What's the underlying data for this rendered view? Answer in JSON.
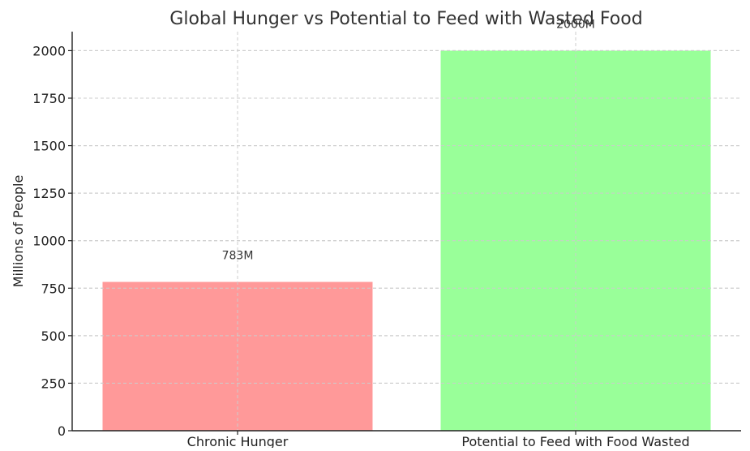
{
  "chart_data": {
    "type": "bar",
    "title": "Global Hunger vs Potential to Feed with Wasted Food",
    "xlabel": "",
    "ylabel": "Millions of People",
    "categories": [
      "Chronic Hunger",
      "Potential to Feed with Food Wasted"
    ],
    "values": [
      783,
      2000
    ],
    "data_labels": [
      "783M",
      "2000M"
    ],
    "colors": [
      "#ff9999",
      "#99ff99"
    ],
    "ylim": [
      0,
      2100
    ],
    "yticks": [
      0,
      250,
      500,
      750,
      1000,
      1250,
      1500,
      1750,
      2000
    ],
    "grid": true,
    "legend": "none"
  }
}
